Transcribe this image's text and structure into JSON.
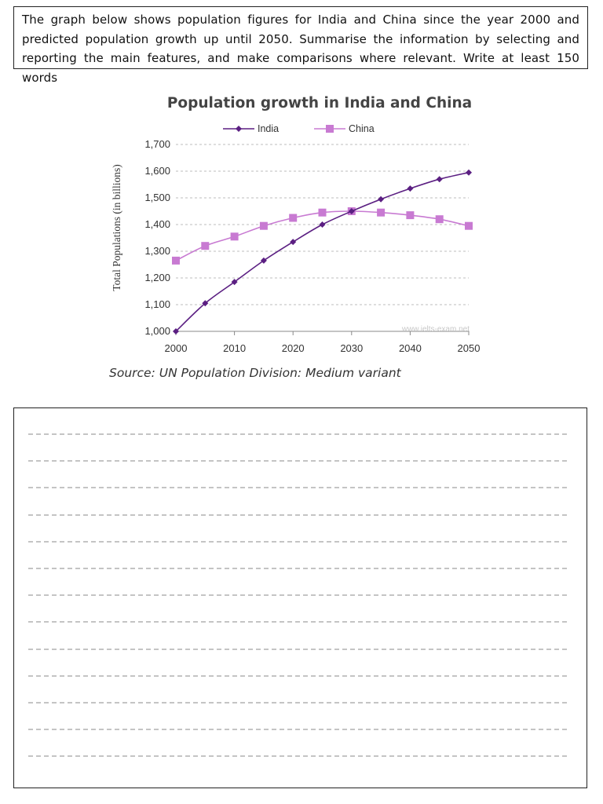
{
  "prompt": {
    "text": "The graph below shows population figures for India and China since the year 2000 and predicted population growth up until 2050. Summarise the information by selecting and reporting the main features, and make comparisons where relevant. Write at least 150 words"
  },
  "chart_data": {
    "type": "line",
    "title": "Population growth in India and China",
    "ylabel": "Total Populations (in billions)",
    "xlabel": "",
    "ylim": [
      1000,
      1700
    ],
    "xlim": [
      2000,
      2050
    ],
    "yticks": [
      1000,
      1100,
      1200,
      1300,
      1400,
      1500,
      1600,
      1700
    ],
    "ytick_labels": [
      "1,000",
      "1,100",
      "1,200",
      "1,300",
      "1,400",
      "1,500",
      "1,600",
      "1,700"
    ],
    "xticks": [
      2000,
      2010,
      2020,
      2030,
      2040,
      2050
    ],
    "xtick_labels": [
      "2000",
      "2010",
      "2020",
      "2030",
      "2040",
      "2050"
    ],
    "grid": "horizontal dashed",
    "legend": "top-center",
    "x": [
      2000,
      2005,
      2010,
      2015,
      2020,
      2025,
      2030,
      2035,
      2040,
      2045,
      2050
    ],
    "series": [
      {
        "name": "India",
        "color": "#5b1f82",
        "marker": "diamond",
        "values": [
          1000,
          1105,
          1185,
          1265,
          1335,
          1400,
          1450,
          1495,
          1535,
          1570,
          1595
        ]
      },
      {
        "name": "China",
        "color": "#c87ad2",
        "marker": "square",
        "values": [
          1265,
          1320,
          1355,
          1395,
          1425,
          1445,
          1450,
          1445,
          1435,
          1420,
          1395
        ]
      }
    ],
    "watermark": "www.ielts-exam.net"
  },
  "source": "Source: UN Population Division: Medium variant",
  "answer_area": {
    "lines": 13
  }
}
